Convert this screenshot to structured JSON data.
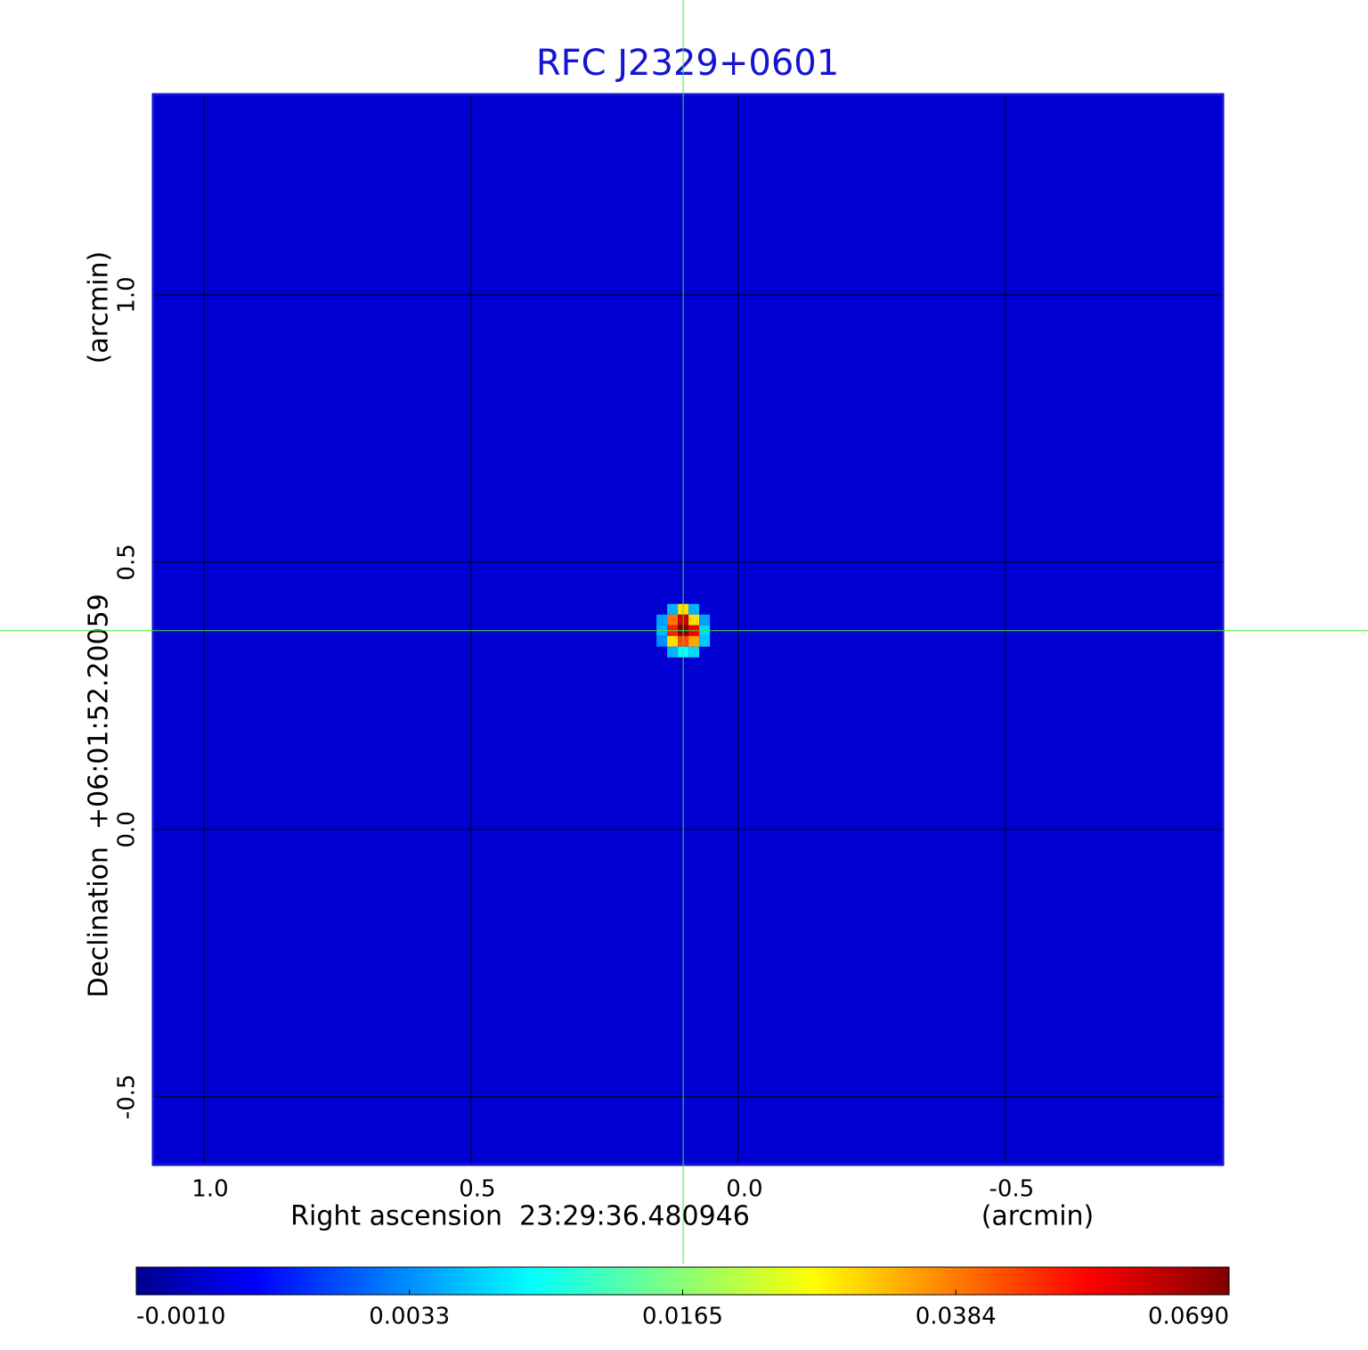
{
  "chart_data": {
    "type": "image",
    "title": "RFC J2329+0601",
    "x_label": "Right ascension  23:29:36.480946",
    "x_unit": "(arcmin)",
    "y_label": "Declination  +06:01:52.20059",
    "y_unit": "(arcmin)",
    "xlim": [
      1.095,
      -0.907
    ],
    "ylim": [
      -0.627,
      1.375
    ],
    "xticks": [
      {
        "value": 1,
        "label": "1.0"
      },
      0.5,
      {
        "value": 0,
        "label": "0.0"
      },
      -0.5
    ],
    "yticks": [
      -0.5,
      {
        "value": 0,
        "label": "0.0"
      },
      0.5,
      {
        "value": 1,
        "label": "1.0"
      }
    ],
    "grid": true,
    "colormap": "jet",
    "colorbar_ticks": [
      {
        "value": -0.001,
        "label": "-0.0010"
      },
      {
        "value": 0.0033,
        "label": "0.0033"
      },
      {
        "value": 0.0165,
        "label": "0.0165"
      },
      {
        "value": 0.0384,
        "label": "0.0384"
      },
      {
        "value": 0.069,
        "label": "0.0690"
      }
    ],
    "background": 0.0004,
    "pixel_size": 0.02,
    "source": {
      "x": [
        0.123,
        0.103,
        0.083,
        0.143,
        0.123,
        0.103,
        0.083,
        0.063,
        0.143,
        0.123,
        0.103,
        0.083,
        0.063,
        0.143,
        0.123,
        0.103,
        0.083,
        0.063,
        0.123,
        0.103,
        0.083
      ],
      "y": [
        0.412,
        0.412,
        0.412,
        0.392,
        0.392,
        0.392,
        0.392,
        0.392,
        0.372,
        0.372,
        0.372,
        0.372,
        0.372,
        0.352,
        0.352,
        0.352,
        0.352,
        0.352,
        0.332,
        0.332,
        0.332
      ],
      "values": [
        0.006,
        0.03,
        0.006,
        0.005,
        0.04,
        0.06,
        0.03,
        0.005,
        0.006,
        0.05,
        0.069,
        0.055,
        0.008,
        0.004,
        0.03,
        0.045,
        0.035,
        0.007,
        0.006,
        0.01,
        0.008
      ]
    },
    "crosshair": {
      "x": 0.103,
      "y": 0.372
    }
  }
}
